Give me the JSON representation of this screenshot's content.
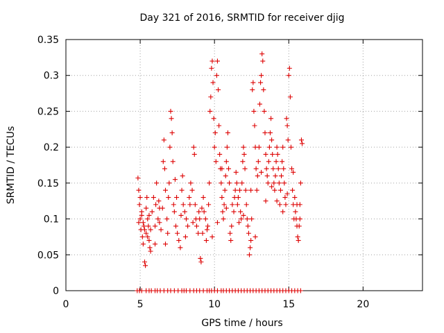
{
  "chart_data": {
    "type": "scatter",
    "title": "Day 321 of 2016, SRMTID for receiver djig",
    "xlabel": "GPS time / hours",
    "ylabel": "SRMTID / TECUs",
    "xlim": [
      0,
      24
    ],
    "ylim": [
      0,
      0.35
    ],
    "xticks": [
      0,
      5,
      10,
      15,
      20
    ],
    "yticks": [
      0,
      0.05,
      0.1,
      0.15,
      0.2,
      0.25,
      0.3,
      0.35
    ],
    "ytick_labels": [
      "0",
      "0.05",
      "0.1",
      "0.15",
      "0.2",
      "0.25",
      "0.3",
      "0.35"
    ],
    "grid": true,
    "marker": "+",
    "color": "#dd0000",
    "series": [
      {
        "points": [
          [
            4.85,
            0.157
          ],
          [
            4.9,
            0.14
          ],
          [
            4.95,
            0.12
          ],
          [
            5.0,
            0.1
          ],
          [
            5.05,
            0.085
          ],
          [
            5.1,
            0.11
          ],
          [
            5.15,
            0.075
          ],
          [
            5.2,
            0.065
          ],
          [
            5.25,
            0.09
          ],
          [
            5.3,
            0.04
          ],
          [
            5.35,
            0.035
          ],
          [
            5.4,
            0.08
          ],
          [
            5.45,
            0.13
          ],
          [
            5.5,
            0.1
          ],
          [
            5.55,
            0.09
          ],
          [
            5.6,
            0.07
          ],
          [
            5.65,
            0.06
          ],
          [
            5.7,
            0.055
          ],
          [
            4.9,
            0.095
          ],
          [
            5.0,
            0.13
          ],
          [
            5.1,
            0.105
          ],
          [
            5.2,
            0.095
          ],
          [
            5.3,
            0.085
          ],
          [
            5.4,
            0.115
          ],
          [
            5.5,
            0.075
          ],
          [
            5.6,
            0.105
          ],
          [
            5.7,
            0.085
          ],
          [
            5.8,
            0.11
          ],
          [
            5.9,
            0.13
          ],
          [
            6.0,
            0.09
          ],
          [
            6.05,
            0.12
          ],
          [
            6.1,
            0.15
          ],
          [
            6.2,
            0.1
          ],
          [
            6.25,
            0.125
          ],
          [
            6.3,
            0.095
          ],
          [
            6.4,
            0.085
          ],
          [
            6.5,
            0.115
          ],
          [
            6.55,
            0.18
          ],
          [
            6.6,
            0.21
          ],
          [
            6.65,
            0.17
          ],
          [
            6.7,
            0.14
          ],
          [
            6.8,
            0.1
          ],
          [
            6.85,
            0.08
          ],
          [
            6.9,
            0.13
          ],
          [
            6.95,
            0.15
          ],
          [
            7.0,
            0.2
          ],
          [
            7.05,
            0.25
          ],
          [
            7.1,
            0.24
          ],
          [
            7.15,
            0.22
          ],
          [
            7.2,
            0.18
          ],
          [
            7.25,
            0.12
          ],
          [
            7.3,
            0.11
          ],
          [
            7.4,
            0.09
          ],
          [
            7.45,
            0.13
          ],
          [
            6.0,
            0.065
          ],
          [
            6.3,
            0.115
          ],
          [
            6.7,
            0.065
          ],
          [
            7.35,
            0.155
          ],
          [
            7.5,
            0.08
          ],
          [
            7.6,
            0.07
          ],
          [
            7.7,
            0.06
          ],
          [
            7.8,
            0.14
          ],
          [
            7.85,
            0.16
          ],
          [
            7.9,
            0.12
          ],
          [
            8.0,
            0.11
          ],
          [
            8.1,
            0.1
          ],
          [
            8.2,
            0.09
          ],
          [
            8.3,
            0.13
          ],
          [
            8.4,
            0.15
          ],
          [
            8.5,
            0.14
          ],
          [
            8.6,
            0.2
          ],
          [
            8.65,
            0.19
          ],
          [
            8.7,
            0.12
          ],
          [
            8.75,
            0.1
          ],
          [
            8.8,
            0.09
          ],
          [
            8.9,
            0.08
          ],
          [
            8.95,
            0.11
          ],
          [
            7.75,
            0.105
          ],
          [
            8.05,
            0.075
          ],
          [
            8.35,
            0.12
          ],
          [
            8.55,
            0.095
          ],
          [
            9.0,
            0.1
          ],
          [
            9.05,
            0.045
          ],
          [
            9.1,
            0.04
          ],
          [
            9.2,
            0.08
          ],
          [
            9.25,
            0.13
          ],
          [
            9.3,
            0.11
          ],
          [
            9.4,
            0.1
          ],
          [
            9.5,
            0.085
          ],
          [
            9.55,
            0.09
          ],
          [
            9.6,
            0.12
          ],
          [
            9.65,
            0.15
          ],
          [
            9.7,
            0.25
          ],
          [
            9.75,
            0.27
          ],
          [
            9.8,
            0.31
          ],
          [
            9.85,
            0.32
          ],
          [
            9.9,
            0.29
          ],
          [
            9.95,
            0.24
          ],
          [
            10.0,
            0.2
          ],
          [
            10.05,
            0.22
          ],
          [
            10.1,
            0.18
          ],
          [
            9.15,
            0.115
          ],
          [
            9.45,
            0.07
          ],
          [
            9.85,
            0.075
          ],
          [
            10.15,
            0.3
          ],
          [
            10.2,
            0.32
          ],
          [
            10.25,
            0.28
          ],
          [
            10.3,
            0.23
          ],
          [
            10.35,
            0.19
          ],
          [
            10.4,
            0.17
          ],
          [
            10.45,
            0.15
          ],
          [
            10.5,
            0.13
          ],
          [
            10.55,
            0.11
          ],
          [
            10.6,
            0.1
          ],
          [
            10.65,
            0.12
          ],
          [
            10.7,
            0.14
          ],
          [
            10.75,
            0.16
          ],
          [
            10.8,
            0.18
          ],
          [
            10.85,
            0.2
          ],
          [
            10.9,
            0.22
          ],
          [
            10.95,
            0.17
          ],
          [
            11.0,
            0.15
          ],
          [
            11.05,
            0.08
          ],
          [
            11.1,
            0.07
          ],
          [
            11.15,
            0.09
          ],
          [
            10.2,
            0.095
          ],
          [
            10.5,
            0.17
          ],
          [
            10.8,
            0.115
          ],
          [
            11.2,
            0.12
          ],
          [
            11.3,
            0.11
          ],
          [
            11.35,
            0.13
          ],
          [
            11.4,
            0.14
          ],
          [
            11.5,
            0.15
          ],
          [
            11.55,
            0.12
          ],
          [
            11.6,
            0.13
          ],
          [
            11.7,
            0.14
          ],
          [
            11.75,
            0.11
          ],
          [
            11.8,
            0.1
          ],
          [
            11.85,
            0.15
          ],
          [
            11.9,
            0.18
          ],
          [
            11.95,
            0.2
          ],
          [
            12.0,
            0.19
          ],
          [
            12.05,
            0.17
          ],
          [
            12.1,
            0.14
          ],
          [
            12.15,
            0.12
          ],
          [
            12.2,
            0.1
          ],
          [
            12.25,
            0.09
          ],
          [
            12.3,
            0.08
          ],
          [
            11.45,
            0.165
          ],
          [
            11.65,
            0.095
          ],
          [
            11.95,
            0.105
          ],
          [
            12.35,
            0.05
          ],
          [
            12.4,
            0.06
          ],
          [
            12.45,
            0.07
          ],
          [
            12.5,
            0.1
          ],
          [
            12.55,
            0.28
          ],
          [
            12.6,
            0.29
          ],
          [
            12.65,
            0.25
          ],
          [
            12.7,
            0.23
          ],
          [
            12.75,
            0.2
          ],
          [
            12.8,
            0.17
          ],
          [
            12.85,
            0.14
          ],
          [
            12.9,
            0.16
          ],
          [
            12.95,
            0.18
          ],
          [
            13.0,
            0.2
          ],
          [
            13.05,
            0.26
          ],
          [
            13.1,
            0.29
          ],
          [
            13.15,
            0.3
          ],
          [
            13.2,
            0.33
          ],
          [
            13.25,
            0.32
          ],
          [
            13.3,
            0.28
          ],
          [
            12.45,
            0.14
          ],
          [
            12.75,
            0.075
          ],
          [
            13.15,
            0.165
          ],
          [
            13.35,
            0.25
          ],
          [
            13.4,
            0.22
          ],
          [
            13.45,
            0.19
          ],
          [
            13.5,
            0.17
          ],
          [
            13.55,
            0.16
          ],
          [
            13.6,
            0.15
          ],
          [
            13.65,
            0.18
          ],
          [
            13.7,
            0.2
          ],
          [
            13.75,
            0.22
          ],
          [
            13.8,
            0.24
          ],
          [
            13.85,
            0.21
          ],
          [
            13.9,
            0.19
          ],
          [
            13.95,
            0.17
          ],
          [
            14.0,
            0.15
          ],
          [
            14.05,
            0.14
          ],
          [
            14.1,
            0.16
          ],
          [
            14.15,
            0.18
          ],
          [
            14.2,
            0.2
          ],
          [
            14.25,
            0.19
          ],
          [
            14.3,
            0.17
          ],
          [
            14.35,
            0.15
          ],
          [
            13.45,
            0.125
          ],
          [
            13.85,
            0.145
          ],
          [
            14.2,
            0.125
          ],
          [
            14.4,
            0.12
          ],
          [
            14.45,
            0.14
          ],
          [
            14.5,
            0.16
          ],
          [
            14.55,
            0.18
          ],
          [
            14.6,
            0.2
          ],
          [
            14.65,
            0.17
          ],
          [
            14.7,
            0.15
          ],
          [
            14.75,
            0.13
          ],
          [
            14.8,
            0.12
          ],
          [
            14.85,
            0.24
          ],
          [
            14.9,
            0.23
          ],
          [
            14.95,
            0.21
          ],
          [
            15.0,
            0.3
          ],
          [
            15.05,
            0.31
          ],
          [
            15.1,
            0.27
          ],
          [
            15.15,
            0.2
          ],
          [
            15.2,
            0.17
          ],
          [
            15.25,
            0.14
          ],
          [
            15.3,
            0.12
          ],
          [
            15.35,
            0.1
          ],
          [
            15.4,
            0.13
          ],
          [
            14.6,
            0.11
          ],
          [
            14.9,
            0.135
          ],
          [
            15.3,
            0.165
          ],
          [
            15.45,
            0.11
          ],
          [
            15.5,
            0.1
          ],
          [
            15.55,
            0.09
          ],
          [
            15.6,
            0.075
          ],
          [
            15.65,
            0.07
          ],
          [
            15.7,
            0.09
          ],
          [
            15.75,
            0.12
          ],
          [
            15.8,
            0.15
          ],
          [
            15.85,
            0.21
          ],
          [
            15.9,
            0.205
          ],
          [
            15.55,
            0.12
          ],
          [
            15.75,
            0.1
          ]
        ]
      },
      {
        "points": [
          [
            4.8,
            0
          ],
          [
            4.95,
            0
          ],
          [
            5.1,
            0
          ],
          [
            5.4,
            0
          ],
          [
            5.6,
            0
          ],
          [
            5.75,
            0
          ],
          [
            6.0,
            0
          ],
          [
            6.15,
            0
          ],
          [
            6.35,
            0
          ],
          [
            6.6,
            0
          ],
          [
            6.85,
            0
          ],
          [
            7.05,
            0
          ],
          [
            7.3,
            0
          ],
          [
            7.55,
            0
          ],
          [
            7.8,
            0
          ],
          [
            7.95,
            0
          ],
          [
            8.1,
            0
          ],
          [
            8.35,
            0
          ],
          [
            8.6,
            0
          ],
          [
            8.8,
            0
          ],
          [
            9.0,
            0
          ],
          [
            9.25,
            0
          ],
          [
            9.5,
            0
          ],
          [
            9.65,
            0
          ],
          [
            9.8,
            0
          ],
          [
            10.0,
            0
          ],
          [
            10.2,
            0
          ],
          [
            10.45,
            0
          ],
          [
            10.6,
            0
          ],
          [
            10.8,
            0
          ],
          [
            11.0,
            0
          ],
          [
            11.2,
            0
          ],
          [
            11.4,
            0
          ],
          [
            11.6,
            0
          ],
          [
            11.8,
            0
          ],
          [
            12.0,
            0
          ],
          [
            12.2,
            0
          ],
          [
            12.4,
            0
          ],
          [
            12.6,
            0
          ],
          [
            12.8,
            0
          ],
          [
            13.0,
            0
          ],
          [
            13.2,
            0
          ],
          [
            13.4,
            0
          ],
          [
            13.6,
            0
          ],
          [
            13.8,
            0
          ],
          [
            14.0,
            0
          ],
          [
            14.2,
            0
          ],
          [
            14.4,
            0
          ],
          [
            14.6,
            0
          ],
          [
            14.8,
            0
          ],
          [
            15.0,
            0
          ],
          [
            15.2,
            0
          ],
          [
            15.4,
            0
          ],
          [
            15.6,
            0
          ],
          [
            15.8,
            0
          ]
        ]
      }
    ]
  }
}
